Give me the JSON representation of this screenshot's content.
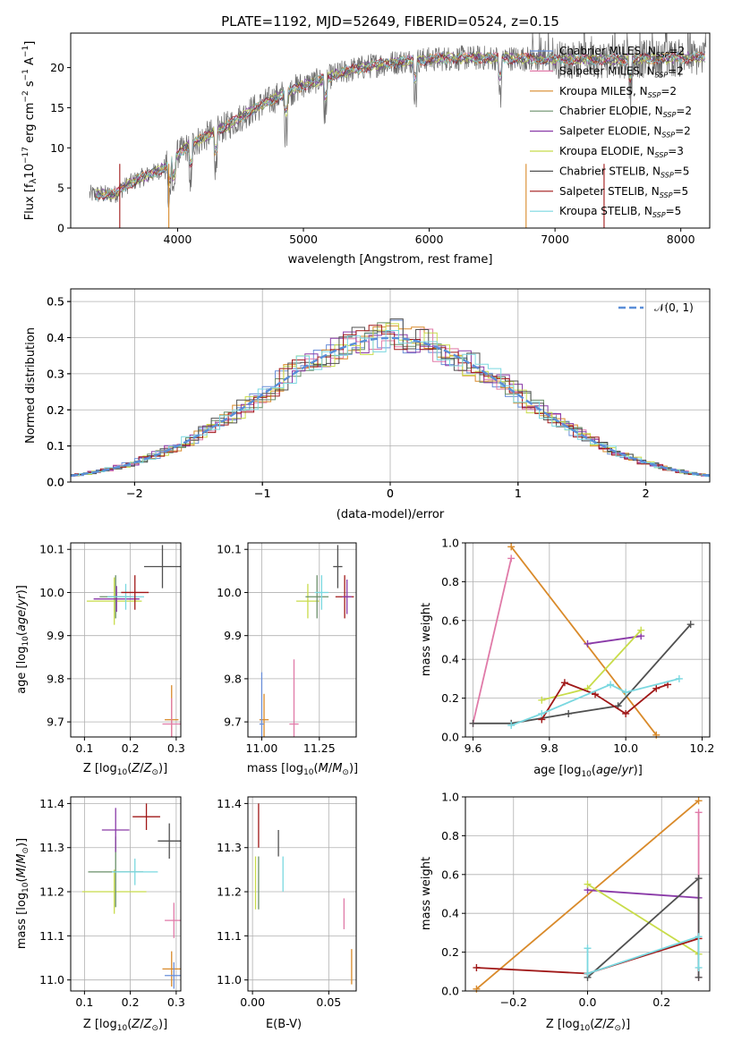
{
  "figure": {
    "title": "PLATE=1192, MJD=52649, FIBERID=0524, z=0.15"
  },
  "colors": {
    "chabrier_miles": "#6a8fd8",
    "salpeter_miles": "#e07aa8",
    "kroupa_miles": "#d98a2a",
    "chabrier_elodie": "#6a8f6a",
    "salpeter_elodie": "#8a3aa8",
    "kroupa_elodie": "#c8dc4a",
    "chabrier_stelib": "#505050",
    "salpeter_stelib": "#a01818",
    "kroupa_stelib": "#7ad8e0",
    "data": "#6a6a6a"
  },
  "chart_data": [
    {
      "id": "spectrum",
      "type": "line",
      "xlabel": "wavelength [Angstrom, rest frame]",
      "ylabel": "Flux [f",
      "ylabel_rest": "10",
      "ylabel_exp": "−17",
      "ylabel_units": " erg cm",
      "ylabel_units_exp": "−2",
      "ylabel_units2": " s",
      "ylabel_units2_exp": "−1",
      "ylabel_units3": " A",
      "ylabel_units3_exp": "−1",
      "ylabel_units4": "]",
      "xlim": [
        3150,
        8230
      ],
      "ylim": [
        0,
        24.3
      ],
      "xticks": [
        "4000",
        "5000",
        "6000",
        "7000",
        "8000"
      ],
      "xtick_values": [
        4000,
        5000,
        6000,
        7000,
        8000
      ],
      "yticks": [
        "0",
        "5",
        "10",
        "15",
        "20"
      ],
      "ytick_values": [
        0,
        5,
        10,
        15,
        20
      ],
      "grid": false,
      "legend_position": "top-right",
      "legend": [
        {
          "name": "Chabrier MILES, N",
          "sub": "SSP",
          "tail": "=2",
          "color_key": "chabrier_miles"
        },
        {
          "name": "Salpeter MILES, N",
          "sub": "SSP",
          "tail": "=2",
          "color_key": "salpeter_miles"
        },
        {
          "name": "Kroupa MILES, N",
          "sub": "SSP",
          "tail": "=2",
          "color_key": "kroupa_miles"
        },
        {
          "name": "Chabrier ELODIE, N",
          "sub": "SSP",
          "tail": "=2",
          "color_key": "chabrier_elodie"
        },
        {
          "name": "Salpeter ELODIE, N",
          "sub": "SSP",
          "tail": "=2",
          "color_key": "salpeter_elodie"
        },
        {
          "name": "Kroupa ELODIE, N",
          "sub": "SSP",
          "tail": "=3",
          "color_key": "kroupa_elodie"
        },
        {
          "name": "Chabrier STELIB, N",
          "sub": "SSP",
          "tail": "=5",
          "color_key": "chabrier_stelib"
        },
        {
          "name": "Salpeter STELIB, N",
          "sub": "SSP",
          "tail": "=5",
          "color_key": "salpeter_stelib"
        },
        {
          "name": "Kroupa STELIB, N",
          "sub": "SSP",
          "tail": "=5",
          "color_key": "kroupa_stelib"
        }
      ],
      "continuum_x": [
        3300,
        3500,
        3600,
        3700,
        3800,
        3900,
        4000,
        4100,
        4200,
        4400,
        4600,
        4800,
        5000,
        5200,
        5400,
        5600,
        5800,
        6000,
        6200,
        6400,
        6600,
        6800,
        7000,
        7200,
        7400,
        7600,
        7800,
        8000,
        8200
      ],
      "continuum_y": [
        4.2,
        4.2,
        5.4,
        6.2,
        6.8,
        7.6,
        9.2,
        10.4,
        11.2,
        12.8,
        14.8,
        16.4,
        17.8,
        18.8,
        19.8,
        20.4,
        20.8,
        21.0,
        21.2,
        21.2,
        21.2,
        21.1,
        21.0,
        21.0,
        21.0,
        21.0,
        21.1,
        21.2,
        21.3
      ],
      "absorption_lines_x": [
        3934,
        3969,
        4102,
        4304,
        4861,
        5175,
        5890,
        6563,
        7600
      ],
      "drop_lines_x": [
        3540,
        3930,
        6770,
        7390
      ]
    },
    {
      "id": "residuals",
      "type": "step",
      "xlabel": "(data-model)/error",
      "ylabel": "Normed distribution",
      "xlim": [
        -2.5,
        2.5
      ],
      "ylim": [
        0,
        0.535
      ],
      "xticks": [
        "−2",
        "−1",
        "0",
        "1",
        "2"
      ],
      "xtick_values": [
        -2,
        -1,
        0,
        1,
        2
      ],
      "yticks": [
        "0.0",
        "0.1",
        "0.2",
        "0.3",
        "0.4",
        "0.5"
      ],
      "ytick_values": [
        0.0,
        0.1,
        0.2,
        0.3,
        0.4,
        0.5
      ],
      "grid": true,
      "legend_position": "top-right",
      "reference_curve": {
        "name": "𝒩(0, 1)",
        "mean": 0,
        "sigma": 1
      },
      "bin_width": 0.1,
      "histogram_series_count": 9
    },
    {
      "id": "age_vs_Z",
      "type": "errorbar",
      "xlabel": "Z [log10(Z/Z⊙)]",
      "ylabel": "age  [log10(age/yr)]",
      "xlim": [
        0.07,
        0.31
      ],
      "ylim": [
        9.665,
        10.115
      ],
      "xticks": [
        "0.1",
        "0.2",
        "0.3"
      ],
      "xtick_values": [
        0.1,
        0.2,
        0.3
      ],
      "yticks": [
        "9.7",
        "9.8",
        "9.9",
        "10.0",
        "10.1"
      ],
      "ytick_values": [
        9.7,
        9.8,
        9.9,
        10.0,
        10.1
      ],
      "points": [
        {
          "x": 0.165,
          "y": 9.98,
          "xerr": 0.06,
          "yerr": 0.055,
          "color_key": "kroupa_elodie"
        },
        {
          "x": 0.168,
          "y": 9.99,
          "xerr": 0.035,
          "yerr": 0.05,
          "color_key": "chabrier_elodie"
        },
        {
          "x": 0.17,
          "y": 9.985,
          "xerr": 0.05,
          "yerr": 0.03,
          "color_key": "salpeter_elodie"
        },
        {
          "x": 0.19,
          "y": 9.99,
          "xerr": 0.04,
          "yerr": 0.03,
          "color_key": "kroupa_stelib"
        },
        {
          "x": 0.21,
          "y": 10.0,
          "xerr": 0.03,
          "yerr": 0.04,
          "color_key": "salpeter_stelib"
        },
        {
          "x": 0.27,
          "y": 10.06,
          "xerr": 0.04,
          "yerr": 0.05,
          "color_key": "chabrier_stelib"
        },
        {
          "x": 0.29,
          "y": 9.705,
          "xerr": 0.015,
          "yerr": 0.08,
          "color_key": "kroupa_miles"
        },
        {
          "x": 0.29,
          "y": 9.695,
          "xerr": 0.02,
          "yerr": 0.06,
          "color_key": "salpeter_miles"
        }
      ]
    },
    {
      "id": "age_vs_mass",
      "type": "errorbar",
      "xlabel": "mass [log10(M/M⊙)]",
      "xlim": [
        10.94,
        11.41
      ],
      "ylim": [
        9.665,
        10.115
      ],
      "xticks": [
        "11.00",
        "11.25"
      ],
      "xtick_values": [
        11.0,
        11.25
      ],
      "yticks": [
        "9.7",
        "9.8",
        "9.9",
        "10.0",
        "10.1"
      ],
      "ytick_values": [
        9.7,
        9.8,
        9.9,
        10.0,
        10.1
      ],
      "points": [
        {
          "x": 11.2,
          "y": 9.98,
          "xerr": 0.05,
          "yerr": 0.04,
          "color_key": "kroupa_elodie"
        },
        {
          "x": 11.24,
          "y": 9.99,
          "xerr": 0.05,
          "yerr": 0.05,
          "color_key": "chabrier_elodie"
        },
        {
          "x": 11.26,
          "y": 10.0,
          "xerr": 0.03,
          "yerr": 0.04,
          "color_key": "kroupa_stelib"
        },
        {
          "x": 11.33,
          "y": 10.06,
          "xerr": 0.02,
          "yerr": 0.05,
          "color_key": "chabrier_stelib"
        },
        {
          "x": 11.36,
          "y": 9.99,
          "xerr": 0.04,
          "yerr": 0.05,
          "color_key": "salpeter_stelib"
        },
        {
          "x": 11.37,
          "y": 9.99,
          "xerr": 0.02,
          "yerr": 0.04,
          "color_key": "salpeter_elodie"
        },
        {
          "x": 11.01,
          "y": 9.705,
          "xerr": 0.02,
          "yerr": 0.06,
          "color_key": "kroupa_miles"
        },
        {
          "x": 11.0,
          "y": 9.695,
          "xerr": 0.01,
          "yerr": 0.12,
          "color_key": "chabrier_miles"
        },
        {
          "x": 11.14,
          "y": 9.695,
          "xerr": 0.02,
          "yerr": 0.15,
          "color_key": "salpeter_miles"
        }
      ]
    },
    {
      "id": "weight_vs_age",
      "type": "line",
      "ylabel": "mass weight",
      "xlabel": "age  [log10(age/yr)]",
      "xlim": [
        9.58,
        10.22
      ],
      "ylim": [
        0,
        1.0
      ],
      "xticks": [
        "9.6",
        "9.8",
        "10.0",
        "10.2"
      ],
      "xtick_values": [
        9.6,
        9.8,
        10.0,
        10.2
      ],
      "yticks": [
        "0.0",
        "0.2",
        "0.4",
        "0.6",
        "0.8",
        "1.0"
      ],
      "ytick_values": [
        0.0,
        0.2,
        0.4,
        0.6,
        0.8,
        1.0
      ],
      "grid": true,
      "series": [
        {
          "color_key": "salpeter_miles",
          "x": [
            9.6,
            9.7
          ],
          "y": [
            0.07,
            0.92
          ]
        },
        {
          "color_key": "kroupa_miles",
          "x": [
            9.7,
            10.08
          ],
          "y": [
            0.98,
            0.01
          ]
        },
        {
          "color_key": "salpeter_elodie",
          "x": [
            9.9,
            10.04
          ],
          "y": [
            0.48,
            0.52
          ]
        },
        {
          "color_key": "kroupa_elodie",
          "x": [
            9.78,
            9.9,
            10.04
          ],
          "y": [
            0.19,
            0.25,
            0.55
          ]
        },
        {
          "color_key": "chabrier_stelib",
          "x": [
            9.6,
            9.7,
            9.85,
            9.98,
            10.17
          ],
          "y": [
            0.07,
            0.07,
            0.12,
            0.16,
            0.58
          ]
        },
        {
          "color_key": "salpeter_stelib",
          "x": [
            9.78,
            9.84,
            9.92,
            10.0,
            10.08,
            10.11
          ],
          "y": [
            0.09,
            0.28,
            0.22,
            0.12,
            0.25,
            0.27
          ]
        },
        {
          "color_key": "kroupa_stelib",
          "x": [
            9.7,
            9.78,
            9.96,
            10.0,
            10.14
          ],
          "y": [
            0.06,
            0.12,
            0.27,
            0.23,
            0.3
          ]
        }
      ]
    },
    {
      "id": "mass_vs_Z",
      "type": "errorbar",
      "xlabel": "Z [log10(Z/Z⊙)]",
      "ylabel": "mass [log10(M/M⊙)]",
      "xlim": [
        0.07,
        0.31
      ],
      "ylim": [
        10.975,
        11.415
      ],
      "xticks": [
        "0.1",
        "0.2",
        "0.3"
      ],
      "xtick_values": [
        0.1,
        0.2,
        0.3
      ],
      "yticks": [
        "11.0",
        "11.1",
        "11.2",
        "11.3",
        "11.4"
      ],
      "ytick_values": [
        11.0,
        11.1,
        11.2,
        11.3,
        11.4
      ],
      "points": [
        {
          "x": 0.165,
          "y": 11.2,
          "xerr": 0.07,
          "yerr": 0.05,
          "color_key": "kroupa_elodie"
        },
        {
          "x": 0.168,
          "y": 11.245,
          "xerr": 0.06,
          "yerr": 0.08,
          "color_key": "chabrier_elodie"
        },
        {
          "x": 0.168,
          "y": 11.34,
          "xerr": 0.03,
          "yerr": 0.05,
          "color_key": "salpeter_elodie"
        },
        {
          "x": 0.21,
          "y": 11.245,
          "xerr": 0.05,
          "yerr": 0.03,
          "color_key": "kroupa_stelib"
        },
        {
          "x": 0.235,
          "y": 11.37,
          "xerr": 0.03,
          "yerr": 0.03,
          "color_key": "salpeter_stelib"
        },
        {
          "x": 0.285,
          "y": 11.315,
          "xerr": 0.025,
          "yerr": 0.04,
          "color_key": "chabrier_stelib"
        },
        {
          "x": 0.295,
          "y": 11.135,
          "xerr": 0.02,
          "yerr": 0.04,
          "color_key": "salpeter_miles"
        },
        {
          "x": 0.29,
          "y": 11.025,
          "xerr": 0.02,
          "yerr": 0.04,
          "color_key": "kroupa_miles"
        },
        {
          "x": 0.295,
          "y": 11.01,
          "xerr": 0.02,
          "yerr": 0.03,
          "color_key": "chabrier_miles"
        }
      ]
    },
    {
      "id": "mass_vs_ebv",
      "type": "errorbar",
      "xlabel": "E(B-V)",
      "xlim": [
        -0.003,
        0.068
      ],
      "ylim": [
        10.975,
        11.415
      ],
      "xticks": [
        "0.00",
        "0.05"
      ],
      "xtick_values": [
        0.0,
        0.05
      ],
      "yticks": [
        "11.0",
        "11.1",
        "11.2",
        "11.3",
        "11.4"
      ],
      "ytick_values": [
        11.0,
        11.1,
        11.2,
        11.3,
        11.4
      ],
      "points": [
        {
          "x": 0.002,
          "y": 11.22,
          "xerr": 0,
          "yerr": 0.06,
          "color_key": "kroupa_elodie"
        },
        {
          "x": 0.004,
          "y": 11.22,
          "xerr": 0,
          "yerr": 0.06,
          "color_key": "chabrier_elodie"
        },
        {
          "x": 0.004,
          "y": 11.35,
          "xerr": 0,
          "yerr": 0.05,
          "color_key": "salpeter_stelib"
        },
        {
          "x": 0.017,
          "y": 11.31,
          "xerr": 0,
          "yerr": 0.03,
          "color_key": "chabrier_stelib"
        },
        {
          "x": 0.02,
          "y": 11.24,
          "xerr": 0,
          "yerr": 0.04,
          "color_key": "kroupa_stelib"
        },
        {
          "x": 0.06,
          "y": 11.15,
          "xerr": 0,
          "yerr": 0.035,
          "color_key": "salpeter_miles"
        },
        {
          "x": 0.065,
          "y": 11.03,
          "xerr": 0,
          "yerr": 0.04,
          "color_key": "kroupa_miles"
        }
      ]
    },
    {
      "id": "weight_vs_Z",
      "type": "line",
      "ylabel": "mass weight",
      "xlabel": "Z [log10(Z/Z⊙)]",
      "xlim": [
        -0.33,
        0.33
      ],
      "ylim": [
        0,
        1.0
      ],
      "xticks": [
        "−0.2",
        "0.0",
        "0.2"
      ],
      "xtick_values": [
        -0.2,
        0.0,
        0.2
      ],
      "yticks": [
        "0.0",
        "0.2",
        "0.4",
        "0.6",
        "0.8",
        "1.0"
      ],
      "ytick_values": [
        0.0,
        0.2,
        0.4,
        0.6,
        0.8,
        1.0
      ],
      "grid": true,
      "series": [
        {
          "color_key": "salpeter_miles",
          "x": [
            0.3,
            0.3
          ],
          "y": [
            0.07,
            0.92
          ]
        },
        {
          "color_key": "kroupa_miles",
          "x": [
            -0.3,
            0.3
          ],
          "y": [
            0.01,
            0.98
          ]
        },
        {
          "color_key": "salpeter_elodie",
          "x": [
            0.0,
            0.3
          ],
          "y": [
            0.52,
            0.48
          ]
        },
        {
          "color_key": "kroupa_elodie",
          "x": [
            0.0,
            0.3
          ],
          "y": [
            0.55,
            0.19
          ]
        },
        {
          "color_key": "chabrier_stelib",
          "x": [
            0.0,
            0.3,
            0.3
          ],
          "y": [
            0.07,
            0.58,
            0.07
          ]
        },
        {
          "color_key": "salpeter_stelib",
          "x": [
            -0.3,
            0.0,
            0.3
          ],
          "y": [
            0.12,
            0.09,
            0.27
          ]
        },
        {
          "color_key": "kroupa_stelib",
          "x": [
            0.0,
            0.0,
            0.3,
            0.3
          ],
          "y": [
            0.22,
            0.09,
            0.28,
            0.12
          ]
        }
      ]
    }
  ]
}
